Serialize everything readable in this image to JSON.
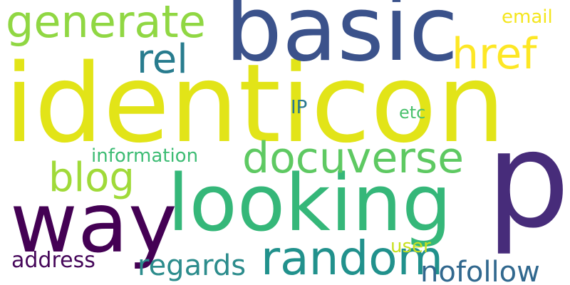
{
  "words": [
    {
      "text": "identicon",
      "color": "#e2e418"
    },
    {
      "text": "basic",
      "color": "#3b528b"
    },
    {
      "text": "looking",
      "color": "#35b779"
    },
    {
      "text": "p",
      "color": "#472c7a"
    },
    {
      "text": "way",
      "color": "#440154"
    },
    {
      "text": "random",
      "color": "#21918c"
    },
    {
      "text": "generate",
      "color": "#90d743"
    },
    {
      "text": "docuverse",
      "color": "#5ec962"
    },
    {
      "text": "href",
      "color": "#fde725"
    },
    {
      "text": "rel",
      "color": "#287c8e"
    },
    {
      "text": "blog",
      "color": "#a0da39"
    },
    {
      "text": "nofollow",
      "color": "#31688e"
    },
    {
      "text": "regards",
      "color": "#2c8c8c"
    },
    {
      "text": "information",
      "color": "#3dbc74"
    },
    {
      "text": "address",
      "color": "#46075a"
    },
    {
      "text": "email",
      "color": "#f4e61e"
    },
    {
      "text": "user",
      "color": "#c8e020"
    },
    {
      "text": "IP",
      "color": "#2a788e"
    },
    {
      "text": "etc",
      "color": "#4ac16d"
    }
  ]
}
